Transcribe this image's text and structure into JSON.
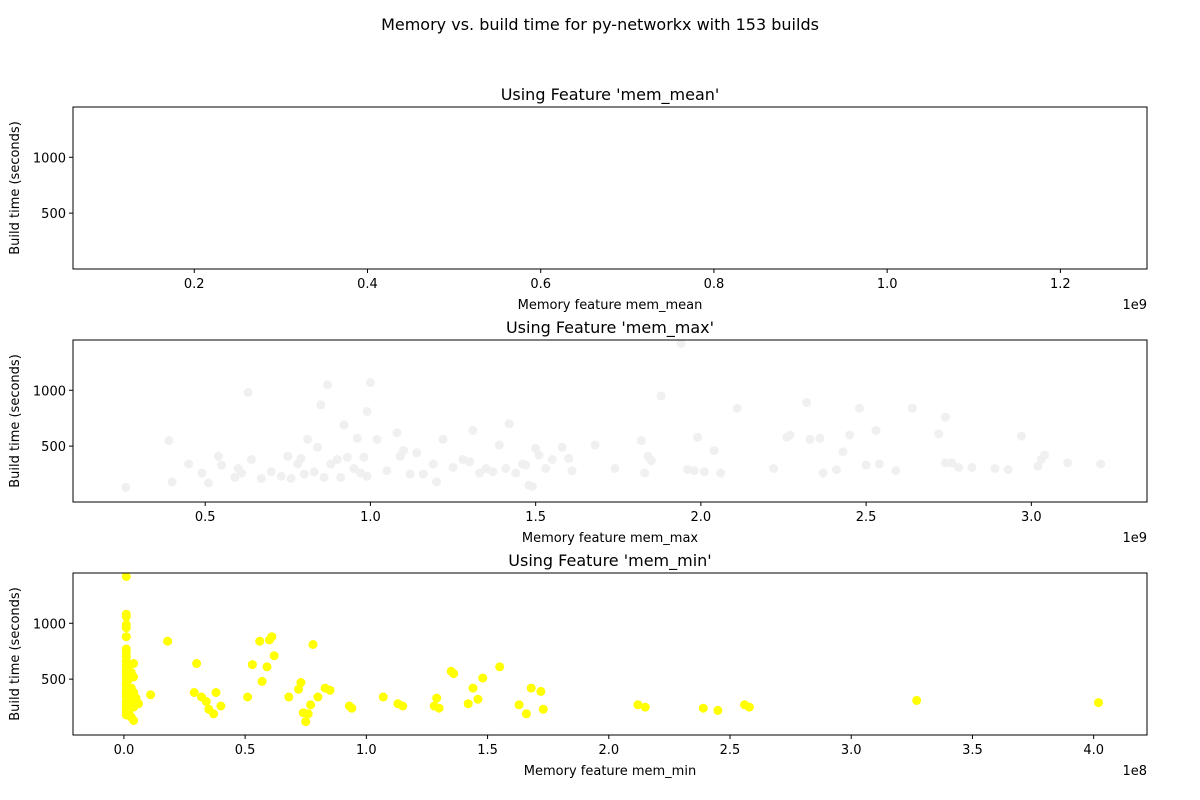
{
  "figure": {
    "suptitle": "Memory vs. build time for py-networkx with 153 builds"
  },
  "chart_data": [
    {
      "type": "scatter",
      "title": "Using Feature 'mem_mean'",
      "xlabel": "Memory feature mem_mean",
      "ylabel": "Build time (seconds)",
      "x_offset_label": "1e9",
      "x_ticks": [
        0.2,
        0.4,
        0.6,
        0.8,
        1.0,
        1.2
      ],
      "x_tick_labels": [
        "0.2",
        "0.4",
        "0.6",
        "0.8",
        "1.0",
        "1.2"
      ],
      "y_ticks": [
        500,
        1000
      ],
      "y_tick_labels": [
        "500",
        "1000"
      ],
      "xlim": [
        0.06,
        1.3
      ],
      "ylim": [
        0,
        1450
      ],
      "color": "#ffffff",
      "points": []
    },
    {
      "type": "scatter",
      "title": "Using Feature 'mem_max'",
      "xlabel": "Memory feature mem_max",
      "ylabel": "Build time (seconds)",
      "x_offset_label": "1e9",
      "x_ticks": [
        0.5,
        1.0,
        1.5,
        2.0,
        2.5,
        3.0
      ],
      "x_tick_labels": [
        "0.5",
        "1.0",
        "1.5",
        "2.0",
        "2.5",
        "3.0"
      ],
      "y_ticks": [
        500,
        1000
      ],
      "y_tick_labels": [
        "500",
        "1000"
      ],
      "xlim": [
        0.1,
        3.35
      ],
      "ylim": [
        0,
        1450
      ],
      "color": "#f0f0f0",
      "points": [
        [
          0.26,
          130
        ],
        [
          0.39,
          550
        ],
        [
          0.4,
          180
        ],
        [
          0.45,
          340
        ],
        [
          0.49,
          260
        ],
        [
          0.51,
          170
        ],
        [
          0.54,
          410
        ],
        [
          0.55,
          330
        ],
        [
          0.59,
          220
        ],
        [
          0.6,
          300
        ],
        [
          0.61,
          260
        ],
        [
          0.63,
          980
        ],
        [
          0.64,
          380
        ],
        [
          0.67,
          210
        ],
        [
          0.7,
          270
        ],
        [
          0.73,
          230
        ],
        [
          0.75,
          410
        ],
        [
          0.76,
          210
        ],
        [
          0.78,
          340
        ],
        [
          0.79,
          390
        ],
        [
          0.8,
          250
        ],
        [
          0.81,
          560
        ],
        [
          0.83,
          270
        ],
        [
          0.84,
          490
        ],
        [
          0.85,
          870
        ],
        [
          0.86,
          220
        ],
        [
          0.87,
          1050
        ],
        [
          0.88,
          340
        ],
        [
          0.9,
          380
        ],
        [
          0.91,
          220
        ],
        [
          0.92,
          690
        ],
        [
          0.93,
          400
        ],
        [
          0.95,
          300
        ],
        [
          0.96,
          570
        ],
        [
          0.97,
          260
        ],
        [
          0.98,
          400
        ],
        [
          0.99,
          230
        ],
        [
          0.99,
          810
        ],
        [
          1.0,
          1070
        ],
        [
          1.02,
          560
        ],
        [
          1.05,
          280
        ],
        [
          1.08,
          620
        ],
        [
          1.09,
          410
        ],
        [
          1.1,
          460
        ],
        [
          1.12,
          250
        ],
        [
          1.14,
          440
        ],
        [
          1.16,
          250
        ],
        [
          1.19,
          340
        ],
        [
          1.2,
          180
        ],
        [
          1.22,
          560
        ],
        [
          1.25,
          310
        ],
        [
          1.28,
          380
        ],
        [
          1.3,
          360
        ],
        [
          1.31,
          640
        ],
        [
          1.33,
          260
        ],
        [
          1.35,
          300
        ],
        [
          1.37,
          270
        ],
        [
          1.39,
          510
        ],
        [
          1.41,
          300
        ],
        [
          1.42,
          700
        ],
        [
          1.44,
          260
        ],
        [
          1.46,
          340
        ],
        [
          1.47,
          330
        ],
        [
          1.48,
          150
        ],
        [
          1.49,
          140
        ],
        [
          1.5,
          480
        ],
        [
          1.51,
          420
        ],
        [
          1.53,
          300
        ],
        [
          1.55,
          380
        ],
        [
          1.58,
          490
        ],
        [
          1.6,
          390
        ],
        [
          1.61,
          280
        ],
        [
          1.68,
          510
        ],
        [
          1.74,
          300
        ],
        [
          1.82,
          550
        ],
        [
          1.83,
          260
        ],
        [
          1.84,
          410
        ],
        [
          1.85,
          370
        ],
        [
          1.88,
          950
        ],
        [
          1.94,
          1420
        ],
        [
          1.96,
          290
        ],
        [
          1.98,
          280
        ],
        [
          1.99,
          580
        ],
        [
          2.01,
          270
        ],
        [
          2.04,
          460
        ],
        [
          2.06,
          260
        ],
        [
          2.11,
          840
        ],
        [
          2.22,
          300
        ],
        [
          2.26,
          580
        ],
        [
          2.27,
          600
        ],
        [
          2.32,
          890
        ],
        [
          2.33,
          560
        ],
        [
          2.36,
          570
        ],
        [
          2.37,
          260
        ],
        [
          2.41,
          290
        ],
        [
          2.43,
          450
        ],
        [
          2.45,
          600
        ],
        [
          2.48,
          840
        ],
        [
          2.5,
          330
        ],
        [
          2.53,
          640
        ],
        [
          2.54,
          340
        ],
        [
          2.59,
          280
        ],
        [
          2.64,
          840
        ],
        [
          2.72,
          610
        ],
        [
          2.74,
          760
        ],
        [
          2.74,
          350
        ],
        [
          2.76,
          350
        ],
        [
          2.78,
          310
        ],
        [
          2.82,
          310
        ],
        [
          2.89,
          300
        ],
        [
          2.93,
          290
        ],
        [
          2.97,
          590
        ],
        [
          3.02,
          320
        ],
        [
          3.03,
          380
        ],
        [
          3.04,
          420
        ],
        [
          3.11,
          350
        ],
        [
          3.21,
          340
        ]
      ]
    },
    {
      "type": "scatter",
      "title": "Using Feature 'mem_min'",
      "xlabel": "Memory feature mem_min",
      "ylabel": "Build time (seconds)",
      "x_offset_label": "1e8",
      "x_ticks": [
        0.0,
        0.5,
        1.0,
        1.5,
        2.0,
        2.5,
        3.0,
        3.5,
        4.0
      ],
      "x_tick_labels": [
        "0.0",
        "0.5",
        "1.0",
        "1.5",
        "2.0",
        "2.5",
        "3.0",
        "3.5",
        "4.0"
      ],
      "y_ticks": [
        500,
        1000
      ],
      "y_tick_labels": [
        "500",
        "1000"
      ],
      "xlim": [
        -0.21,
        4.22
      ],
      "ylim": [
        0,
        1450
      ],
      "color": "#ffff00",
      "points": [
        [
          0.01,
          1420
        ],
        [
          0.01,
          1080
        ],
        [
          0.01,
          1060
        ],
        [
          0.01,
          990
        ],
        [
          0.01,
          960
        ],
        [
          0.01,
          880
        ],
        [
          0.01,
          770
        ],
        [
          0.01,
          740
        ],
        [
          0.01,
          700
        ],
        [
          0.01,
          660
        ],
        [
          0.01,
          620
        ],
        [
          0.01,
          580
        ],
        [
          0.01,
          550
        ],
        [
          0.01,
          510
        ],
        [
          0.01,
          470
        ],
        [
          0.01,
          440
        ],
        [
          0.01,
          400
        ],
        [
          0.01,
          370
        ],
        [
          0.01,
          340
        ],
        [
          0.01,
          300
        ],
        [
          0.01,
          270
        ],
        [
          0.01,
          240
        ],
        [
          0.01,
          210
        ],
        [
          0.01,
          180
        ],
        [
          0.02,
          350
        ],
        [
          0.02,
          500
        ],
        [
          0.02,
          620
        ],
        [
          0.02,
          260
        ],
        [
          0.02,
          200
        ],
        [
          0.03,
          420
        ],
        [
          0.03,
          560
        ],
        [
          0.03,
          300
        ],
        [
          0.03,
          160
        ],
        [
          0.04,
          640
        ],
        [
          0.04,
          520
        ],
        [
          0.04,
          380
        ],
        [
          0.04,
          250
        ],
        [
          0.04,
          130
        ],
        [
          0.05,
          330
        ],
        [
          0.06,
          280
        ],
        [
          0.11,
          360
        ],
        [
          0.18,
          840
        ],
        [
          0.29,
          380
        ],
        [
          0.3,
          640
        ],
        [
          0.32,
          340
        ],
        [
          0.34,
          300
        ],
        [
          0.35,
          230
        ],
        [
          0.37,
          190
        ],
        [
          0.38,
          380
        ],
        [
          0.4,
          260
        ],
        [
          0.51,
          340
        ],
        [
          0.53,
          630
        ],
        [
          0.56,
          840
        ],
        [
          0.57,
          480
        ],
        [
          0.59,
          610
        ],
        [
          0.6,
          850
        ],
        [
          0.61,
          880
        ],
        [
          0.62,
          710
        ],
        [
          0.68,
          340
        ],
        [
          0.72,
          410
        ],
        [
          0.73,
          470
        ],
        [
          0.74,
          200
        ],
        [
          0.75,
          120
        ],
        [
          0.76,
          190
        ],
        [
          0.77,
          270
        ],
        [
          0.78,
          810
        ],
        [
          0.8,
          340
        ],
        [
          0.83,
          420
        ],
        [
          0.85,
          400
        ],
        [
          0.93,
          260
        ],
        [
          0.94,
          240
        ],
        [
          1.07,
          340
        ],
        [
          1.13,
          280
        ],
        [
          1.15,
          260
        ],
        [
          1.28,
          260
        ],
        [
          1.29,
          330
        ],
        [
          1.3,
          240
        ],
        [
          1.35,
          570
        ],
        [
          1.36,
          550
        ],
        [
          1.42,
          280
        ],
        [
          1.44,
          420
        ],
        [
          1.46,
          320
        ],
        [
          1.48,
          510
        ],
        [
          1.55,
          610
        ],
        [
          1.63,
          270
        ],
        [
          1.66,
          190
        ],
        [
          1.68,
          420
        ],
        [
          1.72,
          390
        ],
        [
          1.73,
          230
        ],
        [
          2.12,
          270
        ],
        [
          2.15,
          250
        ],
        [
          2.39,
          240
        ],
        [
          2.45,
          220
        ],
        [
          2.56,
          270
        ],
        [
          2.58,
          250
        ],
        [
          3.27,
          310
        ],
        [
          4.02,
          290
        ]
      ]
    }
  ]
}
